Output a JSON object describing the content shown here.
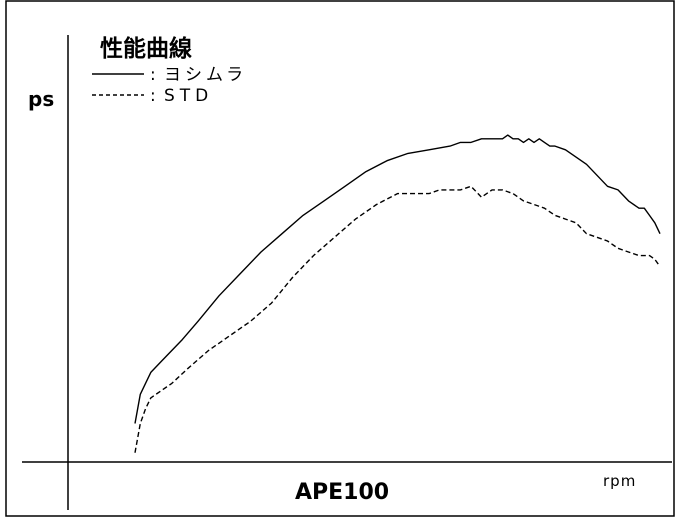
{
  "chart_data": {
    "type": "line",
    "title": "性能曲線",
    "subtitle": "APE100",
    "xlabel": "rpm",
    "ylabel": "ps",
    "x_ticks": [],
    "y_ticks": [],
    "grid": false,
    "legend_position": "top-left",
    "xlim": [
      0,
      100
    ],
    "ylim": [
      0,
      100
    ],
    "series": [
      {
        "name": "ヨシムラ",
        "style": "solid",
        "color": "#000000",
        "x": [
          0,
          1,
          3,
          5,
          7,
          9,
          12,
          16,
          20,
          24,
          28,
          32,
          36,
          40,
          44,
          48,
          52,
          56,
          60,
          62,
          64,
          66,
          68,
          70,
          71,
          72,
          73,
          74,
          75,
          76,
          77,
          78,
          79,
          80,
          82,
          84,
          86,
          88,
          90,
          92,
          94,
          96,
          97,
          98,
          99,
          100
        ],
        "y": [
          10,
          18,
          24,
          27,
          30,
          33,
          38,
          45,
          51,
          57,
          62,
          67,
          71,
          75,
          79,
          82,
          84,
          85,
          86,
          87,
          87,
          88,
          88,
          88,
          89,
          88,
          88,
          87,
          88,
          87,
          88,
          87,
          86,
          86,
          85,
          83,
          81,
          78,
          75,
          74,
          71,
          69,
          69,
          67,
          65,
          62
        ]
      },
      {
        "name": "STD",
        "style": "dashed",
        "color": "#000000",
        "x": [
          0,
          1,
          2,
          3,
          5,
          7,
          10,
          14,
          18,
          22,
          26,
          30,
          34,
          38,
          42,
          46,
          50,
          52,
          54,
          56,
          58,
          60,
          62,
          64,
          66,
          68,
          70,
          72,
          74,
          76,
          78,
          80,
          82,
          84,
          86,
          88,
          90,
          92,
          94,
          96,
          97,
          98,
          99,
          100
        ],
        "y": [
          2,
          10,
          14,
          17,
          19,
          21,
          25,
          30,
          34,
          38,
          43,
          50,
          56,
          61,
          66,
          70,
          73,
          73,
          73,
          73,
          74,
          74,
          74,
          75,
          72,
          74,
          74,
          73,
          71,
          70,
          69,
          67,
          66,
          65,
          62,
          61,
          60,
          58,
          57,
          56,
          56,
          56,
          55,
          53
        ]
      }
    ]
  }
}
